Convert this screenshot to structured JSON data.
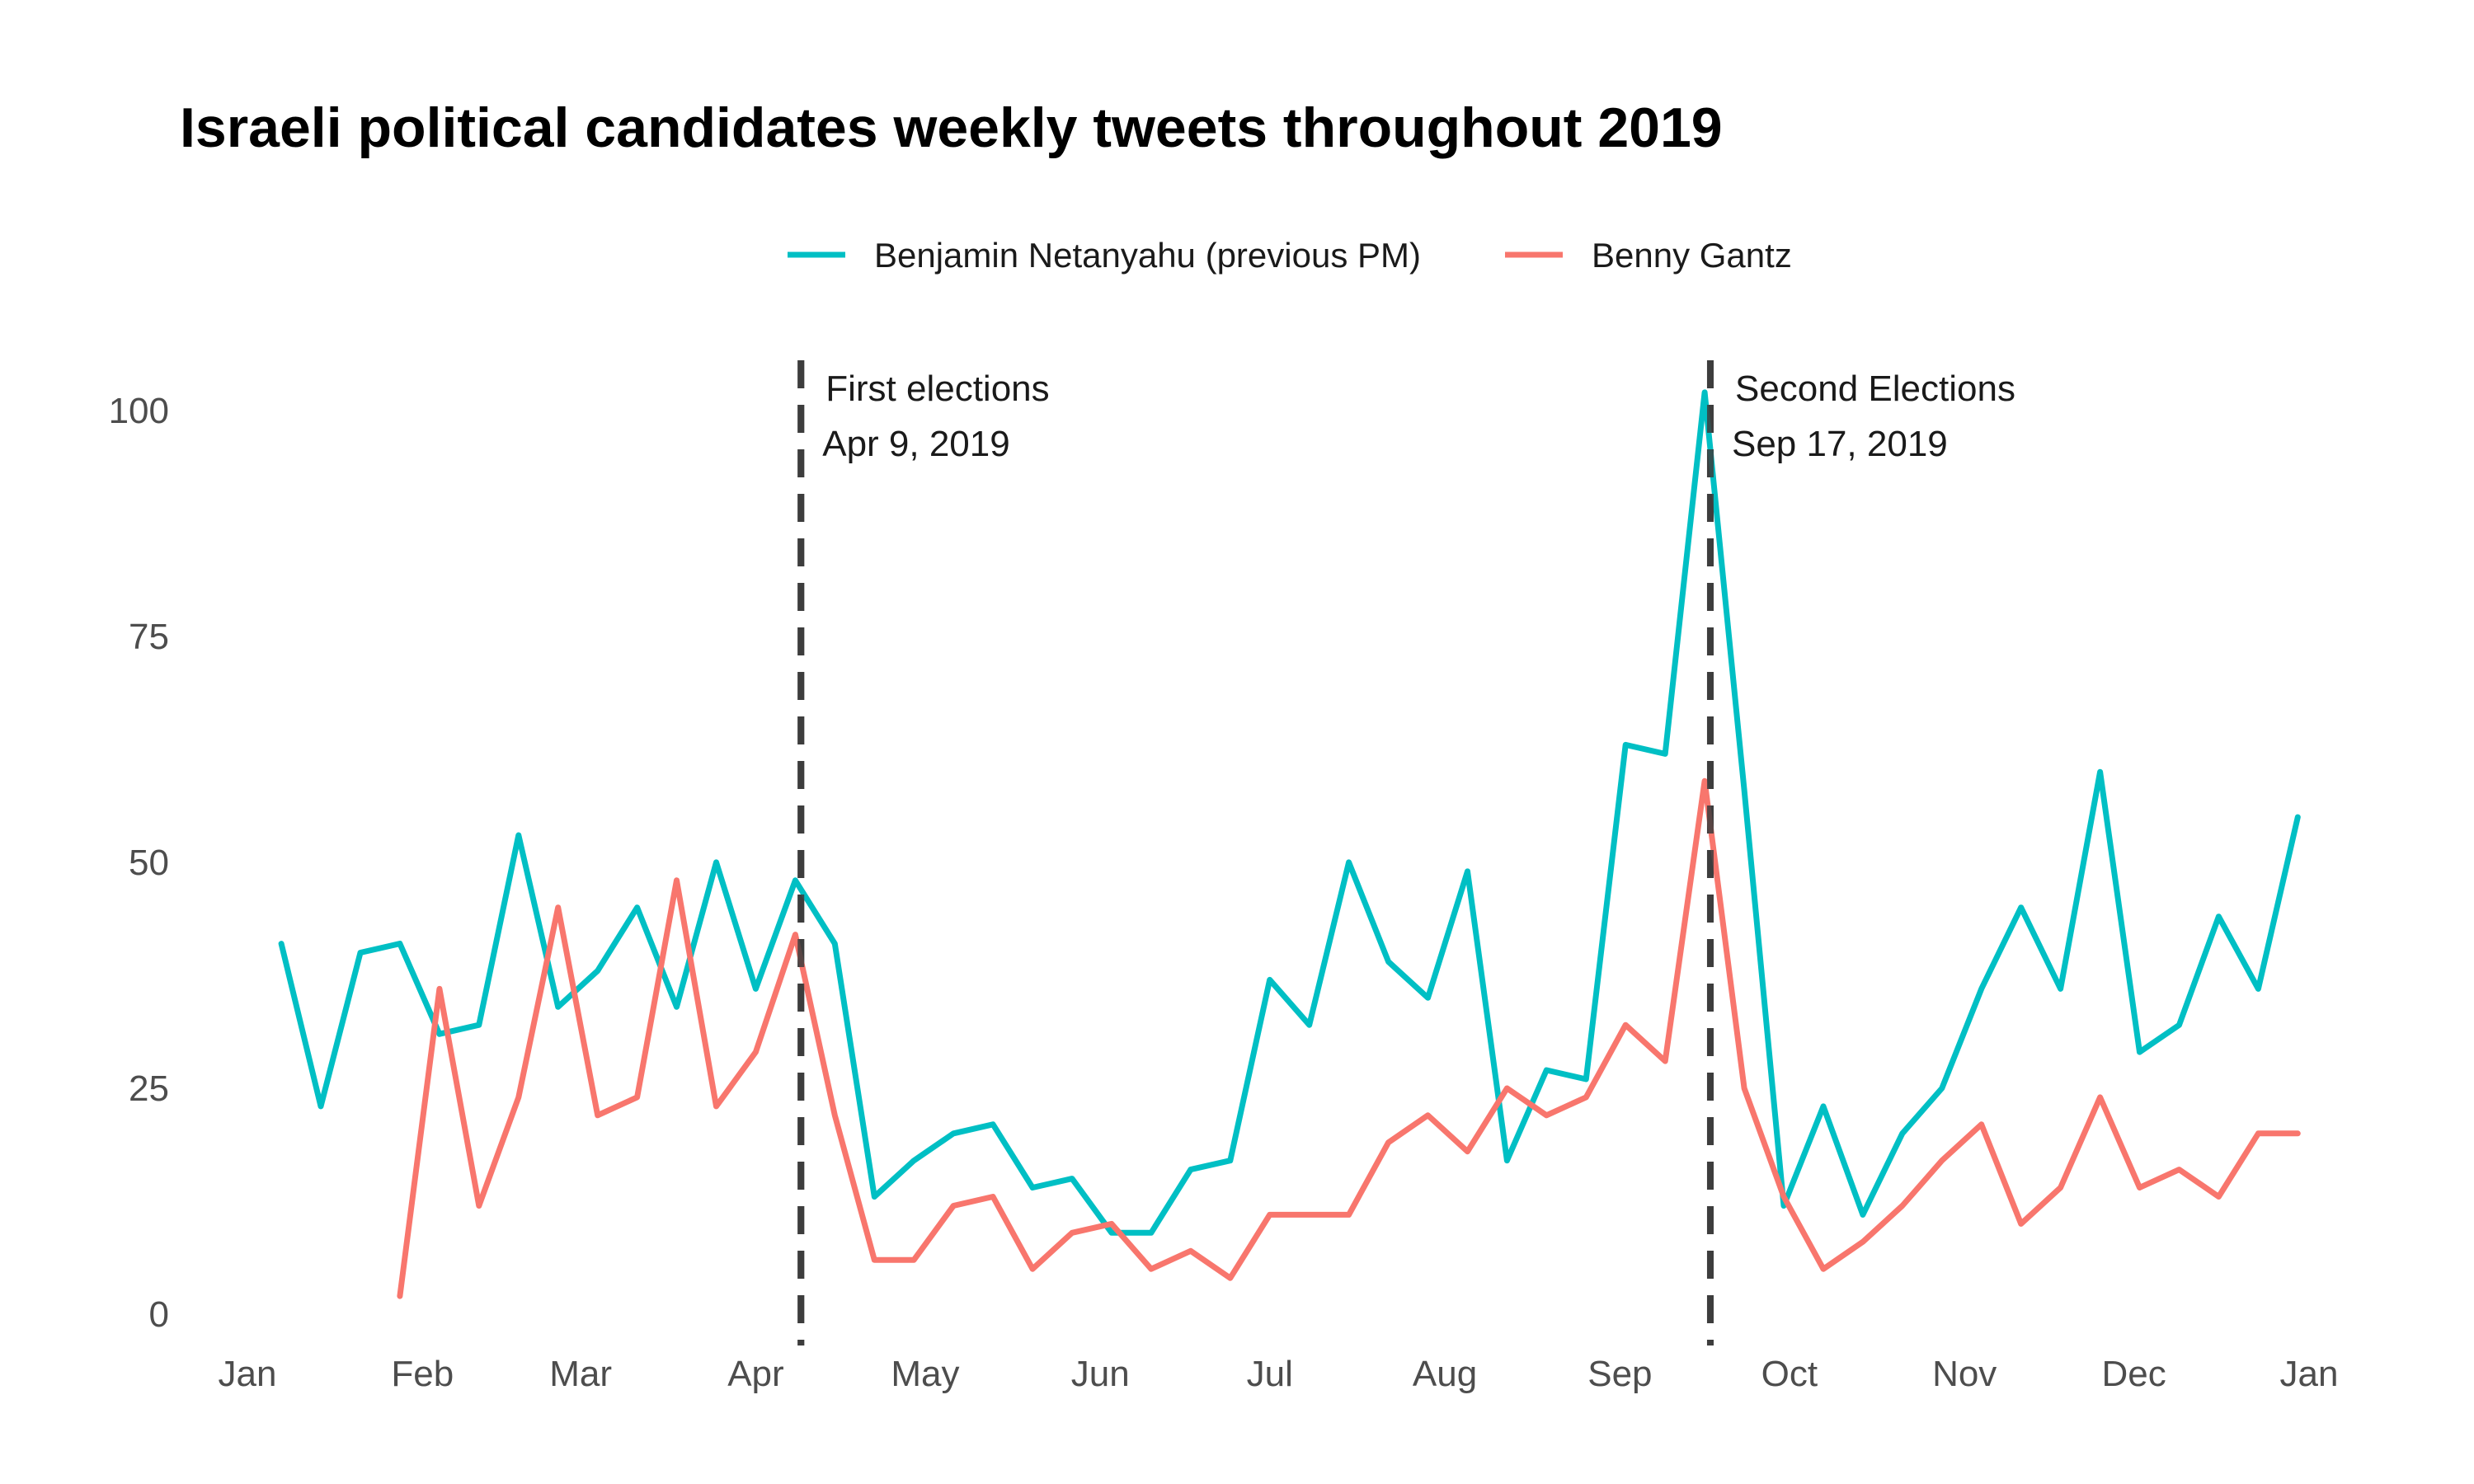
{
  "chart_data": {
    "type": "line",
    "title": "Israeli political candidates weekly tweets throughout 2019",
    "xlabel": "",
    "ylabel": "",
    "x_axis": {
      "type": "date",
      "range": [
        "2019-01-01",
        "2020-01-01"
      ],
      "ticks": [
        {
          "date": "2019-01-01",
          "label": "Jan"
        },
        {
          "date": "2019-02-01",
          "label": "Feb"
        },
        {
          "date": "2019-03-01",
          "label": "Mar"
        },
        {
          "date": "2019-04-01",
          "label": "Apr"
        },
        {
          "date": "2019-05-01",
          "label": "May"
        },
        {
          "date": "2019-06-01",
          "label": "Jun"
        },
        {
          "date": "2019-07-01",
          "label": "Jul"
        },
        {
          "date": "2019-08-01",
          "label": "Aug"
        },
        {
          "date": "2019-09-01",
          "label": "Sep"
        },
        {
          "date": "2019-10-01",
          "label": "Oct"
        },
        {
          "date": "2019-11-01",
          "label": "Nov"
        },
        {
          "date": "2019-12-01",
          "label": "Dec"
        },
        {
          "date": "2020-01-01",
          "label": "Jan"
        }
      ]
    },
    "y_axis": {
      "range": [
        0,
        104
      ],
      "ticks": [
        0,
        25,
        50,
        75,
        100
      ]
    },
    "grid": false,
    "legend": {
      "position": "top"
    },
    "series": [
      {
        "name": "Benjamin Netanyahu (previous PM)",
        "color": "#00BFC4",
        "points": [
          [
            "2019-01-07",
            41
          ],
          [
            "2019-01-14",
            23
          ],
          [
            "2019-01-21",
            40
          ],
          [
            "2019-01-28",
            41
          ],
          [
            "2019-02-04",
            31
          ],
          [
            "2019-02-11",
            32
          ],
          [
            "2019-02-18",
            53
          ],
          [
            "2019-02-25",
            34
          ],
          [
            "2019-03-04",
            38
          ],
          [
            "2019-03-11",
            45
          ],
          [
            "2019-03-18",
            34
          ],
          [
            "2019-03-25",
            50
          ],
          [
            "2019-04-01",
            36
          ],
          [
            "2019-04-08",
            48
          ],
          [
            "2019-04-15",
            41
          ],
          [
            "2019-04-22",
            13
          ],
          [
            "2019-04-29",
            17
          ],
          [
            "2019-05-06",
            20
          ],
          [
            "2019-05-13",
            21
          ],
          [
            "2019-05-20",
            14
          ],
          [
            "2019-05-27",
            15
          ],
          [
            "2019-06-03",
            9
          ],
          [
            "2019-06-10",
            9
          ],
          [
            "2019-06-17",
            16
          ],
          [
            "2019-06-24",
            17
          ],
          [
            "2019-07-01",
            37
          ],
          [
            "2019-07-08",
            32
          ],
          [
            "2019-07-15",
            50
          ],
          [
            "2019-07-22",
            39
          ],
          [
            "2019-07-29",
            35
          ],
          [
            "2019-08-05",
            49
          ],
          [
            "2019-08-12",
            17
          ],
          [
            "2019-08-19",
            27
          ],
          [
            "2019-08-26",
            26
          ],
          [
            "2019-09-02",
            63
          ],
          [
            "2019-09-09",
            62
          ],
          [
            "2019-09-16",
            102
          ],
          [
            "2019-09-23",
            58
          ],
          [
            "2019-09-30",
            12
          ],
          [
            "2019-10-07",
            23
          ],
          [
            "2019-10-14",
            11
          ],
          [
            "2019-10-21",
            20
          ],
          [
            "2019-10-28",
            25
          ],
          [
            "2019-11-04",
            36
          ],
          [
            "2019-11-11",
            45
          ],
          [
            "2019-11-18",
            36
          ],
          [
            "2019-11-25",
            60
          ],
          [
            "2019-12-02",
            29
          ],
          [
            "2019-12-09",
            32
          ],
          [
            "2019-12-16",
            44
          ],
          [
            "2019-12-23",
            36
          ],
          [
            "2019-12-30",
            55
          ]
        ]
      },
      {
        "name": "Benny Gantz",
        "color": "#F8766D",
        "points": [
          [
            "2019-01-28",
            2
          ],
          [
            "2019-02-04",
            36
          ],
          [
            "2019-02-11",
            12
          ],
          [
            "2019-02-18",
            24
          ],
          [
            "2019-02-25",
            45
          ],
          [
            "2019-03-04",
            22
          ],
          [
            "2019-03-11",
            24
          ],
          [
            "2019-03-18",
            48
          ],
          [
            "2019-03-25",
            23
          ],
          [
            "2019-04-01",
            29
          ],
          [
            "2019-04-08",
            42
          ],
          [
            "2019-04-15",
            22
          ],
          [
            "2019-04-22",
            6
          ],
          [
            "2019-04-29",
            6
          ],
          [
            "2019-05-06",
            12
          ],
          [
            "2019-05-13",
            13
          ],
          [
            "2019-05-20",
            5
          ],
          [
            "2019-05-27",
            9
          ],
          [
            "2019-06-03",
            10
          ],
          [
            "2019-06-10",
            5
          ],
          [
            "2019-06-17",
            7
          ],
          [
            "2019-06-24",
            4
          ],
          [
            "2019-07-01",
            11
          ],
          [
            "2019-07-08",
            11
          ],
          [
            "2019-07-15",
            11
          ],
          [
            "2019-07-22",
            19
          ],
          [
            "2019-07-29",
            22
          ],
          [
            "2019-08-05",
            18
          ],
          [
            "2019-08-12",
            25
          ],
          [
            "2019-08-19",
            22
          ],
          [
            "2019-08-26",
            24
          ],
          [
            "2019-09-02",
            32
          ],
          [
            "2019-09-09",
            28
          ],
          [
            "2019-09-16",
            59
          ],
          [
            "2019-09-23",
            25
          ],
          [
            "2019-09-30",
            13
          ],
          [
            "2019-10-07",
            5
          ],
          [
            "2019-10-14",
            8
          ],
          [
            "2019-10-21",
            12
          ],
          [
            "2019-10-28",
            17
          ],
          [
            "2019-11-04",
            21
          ],
          [
            "2019-11-11",
            10
          ],
          [
            "2019-11-18",
            14
          ],
          [
            "2019-11-25",
            24
          ],
          [
            "2019-12-02",
            14
          ],
          [
            "2019-12-09",
            16
          ],
          [
            "2019-12-16",
            13
          ],
          [
            "2019-12-23",
            20
          ],
          [
            "2019-12-30",
            20
          ]
        ]
      }
    ],
    "annotations": [
      {
        "date": "2019-04-09",
        "label_line1": "First elections",
        "label_line2": "Apr 9, 2019"
      },
      {
        "date": "2019-09-17",
        "label_line1": "Second Elections",
        "label_line2": "Sep 17, 2019"
      }
    ]
  }
}
